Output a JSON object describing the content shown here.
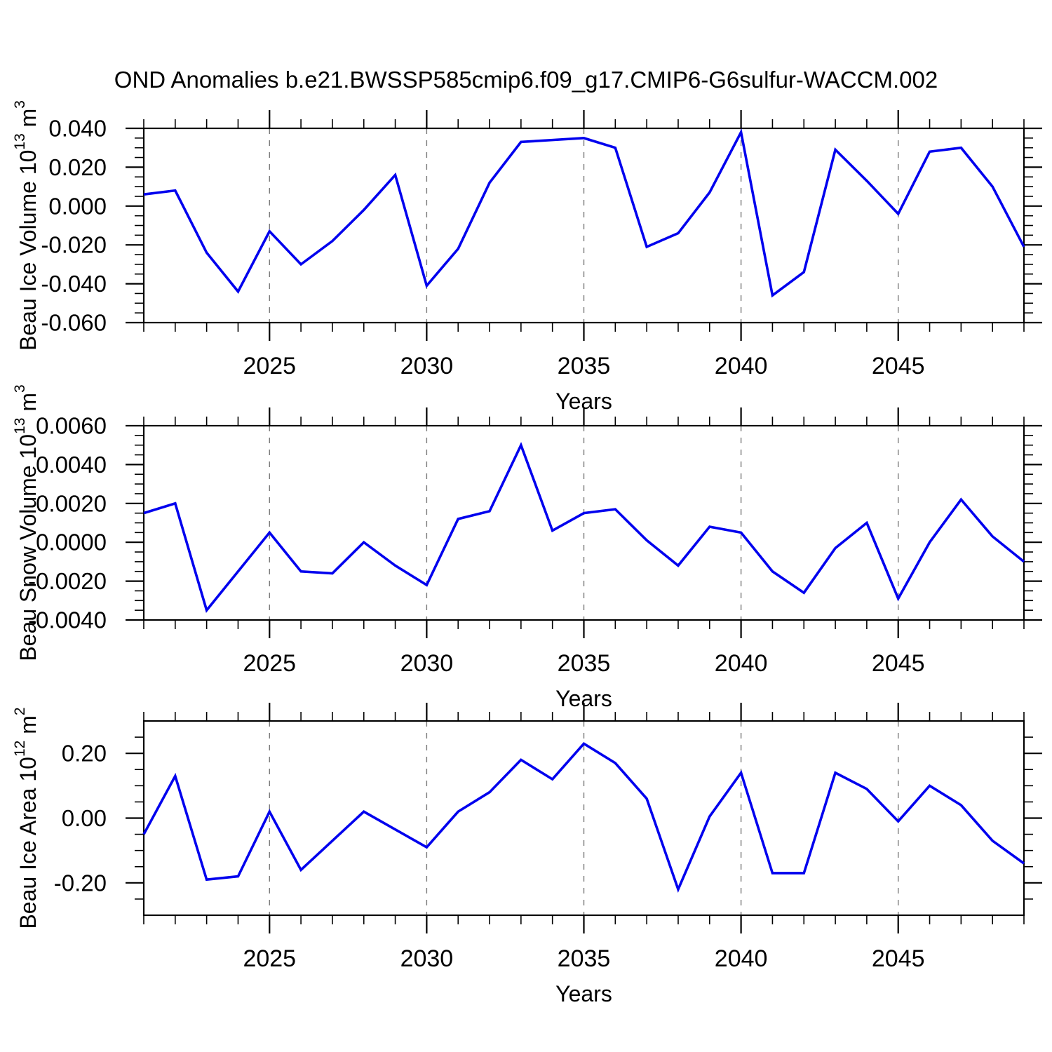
{
  "title": "OND Anomalies b.e21.BWSSP585cmip6.f09_g17.CMIP6-G6sulfur-WACCM.002",
  "colors": {
    "line": "#0000ee",
    "grid": "#7a7a7a",
    "axis": "#000000",
    "background": "#ffffff"
  },
  "chart_data": [
    {
      "type": "line",
      "name": "beau-ice-volume",
      "ylabel": "Beau Ice Volume 10¹³ m³",
      "ylabel_parts": [
        {
          "text": "Beau Ice Volume 10"
        },
        {
          "text": "13",
          "sup": true
        },
        {
          "text": " m"
        },
        {
          "text": "3",
          "sup": true
        }
      ],
      "xlabel": "Years",
      "xlim": [
        2021,
        2049
      ],
      "ylim": [
        -0.06,
        0.04
      ],
      "x_ticks": [
        2025,
        2030,
        2035,
        2040,
        2045
      ],
      "grid_x": [
        2025,
        2030,
        2035,
        2040,
        2045
      ],
      "y_minor_step": 0.005,
      "y_ticks": [
        {
          "value": 0.04,
          "label": "0.040"
        },
        {
          "value": 0.02,
          "label": "0.020"
        },
        {
          "value": 0.0,
          "label": "0.000"
        },
        {
          "value": -0.02,
          "label": "-0.020"
        },
        {
          "value": -0.04,
          "label": "-0.040"
        },
        {
          "value": -0.06,
          "label": "-0.060"
        }
      ],
      "x": [
        2021,
        2022,
        2023,
        2024,
        2025,
        2026,
        2027,
        2028,
        2029,
        2030,
        2031,
        2032,
        2033,
        2034,
        2035,
        2036,
        2037,
        2038,
        2039,
        2040,
        2041,
        2042,
        2043,
        2044,
        2045,
        2046,
        2047,
        2048,
        2049
      ],
      "values": [
        0.006,
        0.008,
        -0.024,
        -0.044,
        -0.013,
        -0.03,
        -0.018,
        -0.002,
        0.016,
        -0.041,
        -0.022,
        0.012,
        0.033,
        0.034,
        0.035,
        0.03,
        -0.021,
        -0.014,
        0.007,
        0.038,
        -0.046,
        -0.034,
        0.029,
        0.013,
        -0.004,
        0.028,
        0.03,
        0.01,
        -0.021
      ]
    },
    {
      "type": "line",
      "name": "beau-snow-volume",
      "ylabel": "Beau Snow Volume 10¹³ m³",
      "ylabel_parts": [
        {
          "text": "Beau Snow Volume 10"
        },
        {
          "text": "13",
          "sup": true
        },
        {
          "text": " m"
        },
        {
          "text": "3",
          "sup": true
        }
      ],
      "xlabel": "Years",
      "xlim": [
        2021,
        2049
      ],
      "ylim": [
        -0.004,
        0.006
      ],
      "x_ticks": [
        2025,
        2030,
        2035,
        2040,
        2045
      ],
      "grid_x": [
        2025,
        2030,
        2035,
        2040,
        2045
      ],
      "y_minor_step": 0.0005,
      "y_ticks": [
        {
          "value": 0.006,
          "label": "0.0060"
        },
        {
          "value": 0.004,
          "label": "0.0040"
        },
        {
          "value": 0.002,
          "label": "0.0020"
        },
        {
          "value": 0.0,
          "label": "0.0000"
        },
        {
          "value": -0.002,
          "label": "-0.0020"
        },
        {
          "value": -0.004,
          "label": "-0.0040"
        }
      ],
      "x": [
        2021,
        2022,
        2023,
        2024,
        2025,
        2026,
        2027,
        2028,
        2029,
        2030,
        2031,
        2032,
        2033,
        2034,
        2035,
        2036,
        2037,
        2038,
        2039,
        2040,
        2041,
        2042,
        2043,
        2044,
        2045,
        2046,
        2047,
        2048,
        2049
      ],
      "values": [
        0.0015,
        0.002,
        -0.0035,
        -0.0015,
        0.0005,
        -0.0015,
        -0.0016,
        0.0,
        -0.0012,
        -0.0022,
        0.0012,
        0.0016,
        0.005,
        0.0006,
        0.0015,
        0.0017,
        0.0001,
        -0.0012,
        0.0008,
        0.0005,
        -0.0015,
        -0.0026,
        -0.0003,
        0.001,
        -0.0029,
        0.0,
        0.0022,
        0.0003,
        -0.001
      ]
    },
    {
      "type": "line",
      "name": "beau-ice-area",
      "ylabel": "Beau Ice Area 10¹² m²",
      "ylabel_parts": [
        {
          "text": "Beau Ice Area 10"
        },
        {
          "text": "12",
          "sup": true
        },
        {
          "text": " m"
        },
        {
          "text": "2",
          "sup": true
        }
      ],
      "xlabel": "Years",
      "xlim": [
        2021,
        2049
      ],
      "ylim": [
        -0.3,
        0.3
      ],
      "x_ticks": [
        2025,
        2030,
        2035,
        2040,
        2045
      ],
      "grid_x": [
        2025,
        2030,
        2035,
        2040,
        2045
      ],
      "y_minor_step": 0.05,
      "y_ticks": [
        {
          "value": 0.2,
          "label": "0.20"
        },
        {
          "value": 0.0,
          "label": "0.00"
        },
        {
          "value": -0.2,
          "label": "-0.20"
        }
      ],
      "x": [
        2021,
        2022,
        2023,
        2024,
        2025,
        2026,
        2027,
        2028,
        2029,
        2030,
        2031,
        2032,
        2033,
        2034,
        2035,
        2036,
        2037,
        2038,
        2039,
        2040,
        2041,
        2042,
        2043,
        2044,
        2045,
        2046,
        2047,
        2048,
        2049
      ],
      "values": [
        -0.05,
        0.13,
        -0.19,
        -0.18,
        0.02,
        -0.16,
        -0.07,
        0.02,
        -0.035,
        -0.09,
        0.02,
        0.08,
        0.18,
        0.12,
        0.23,
        0.17,
        0.06,
        -0.22,
        0.005,
        0.14,
        -0.17,
        -0.17,
        0.14,
        0.09,
        -0.01,
        0.1,
        0.04,
        -0.07,
        -0.14
      ]
    }
  ]
}
